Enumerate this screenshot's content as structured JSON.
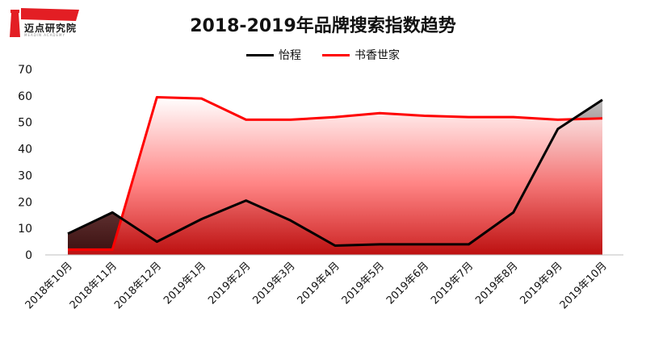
{
  "logo": {
    "text": "迈点研究院",
    "subtext": "MEADIN ACADEMY",
    "accent": "#e31e24"
  },
  "chart_data": {
    "type": "area",
    "title": "2018-2019年品牌搜索指数趋势",
    "categories": [
      "2018年10月",
      "2018年11月",
      "2018年12月",
      "2019年1月",
      "2019年2月",
      "2019年3月",
      "2019年4月",
      "2019年5月",
      "2019年6月",
      "2019年7月",
      "2019年8月",
      "2019年9月",
      "2019年10月"
    ],
    "series": [
      {
        "name": "怡程",
        "color": "#000000",
        "values": [
          8,
          16,
          5,
          13.5,
          20.5,
          13,
          3.5,
          4,
          4,
          4,
          16,
          47.5,
          58.5
        ]
      },
      {
        "name": "书香世家",
        "color": "#ff0000",
        "values": [
          2,
          2,
          59.5,
          59,
          51,
          51,
          52,
          53.5,
          52.5,
          52,
          52,
          51,
          51.5
        ]
      }
    ],
    "ylim": [
      0,
      70
    ],
    "yticks": [
      0,
      10,
      20,
      30,
      40,
      50,
      60,
      70
    ],
    "grid": false,
    "legend_position": "top"
  }
}
